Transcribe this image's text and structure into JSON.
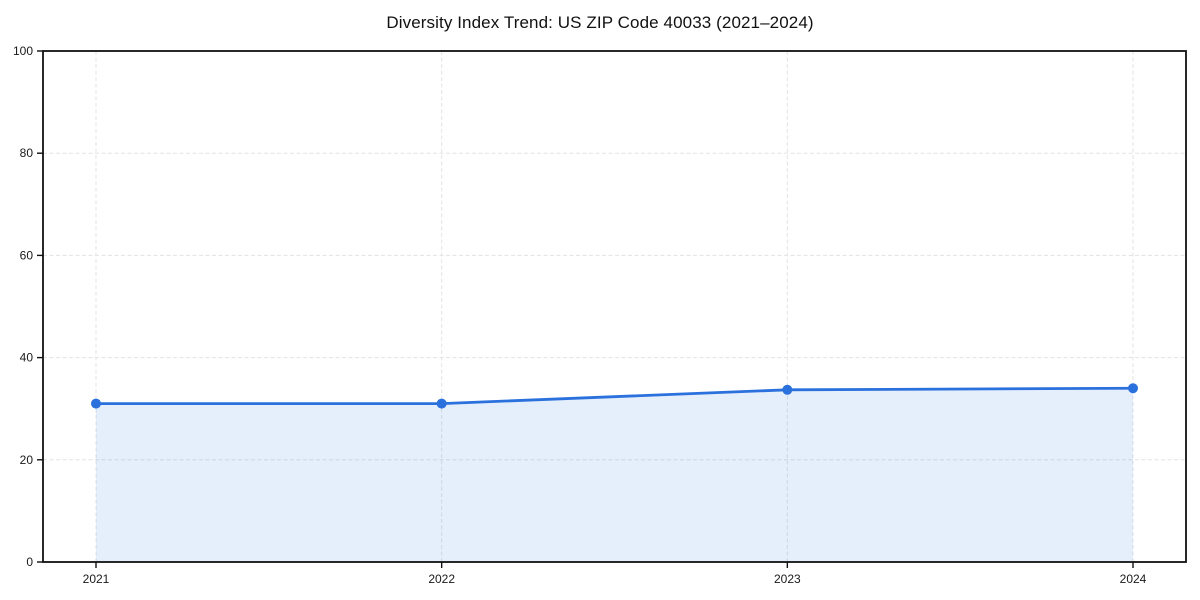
{
  "chart_data": {
    "type": "area",
    "title": "Diversity Index Trend: US ZIP Code 40033 (2021–2024)",
    "x": [
      "2021",
      "2022",
      "2023",
      "2024"
    ],
    "series": [
      {
        "name": "Diversity Index",
        "values": [
          31,
          31,
          33.7,
          34
        ]
      }
    ],
    "xlabel": "",
    "ylabel": "",
    "ylim": [
      0,
      100
    ],
    "yticks": [
      0,
      20,
      40,
      60,
      80,
      100
    ],
    "grid": "dashed",
    "legend": "none",
    "colors": {
      "line": "#2b71dd",
      "marker": "#2b71dd",
      "fill": "#2b71dd",
      "fill_opacity": 0.12,
      "grid": "#e3e3e3",
      "frame": "#111111",
      "tick_text": "#1a1a1a"
    }
  }
}
